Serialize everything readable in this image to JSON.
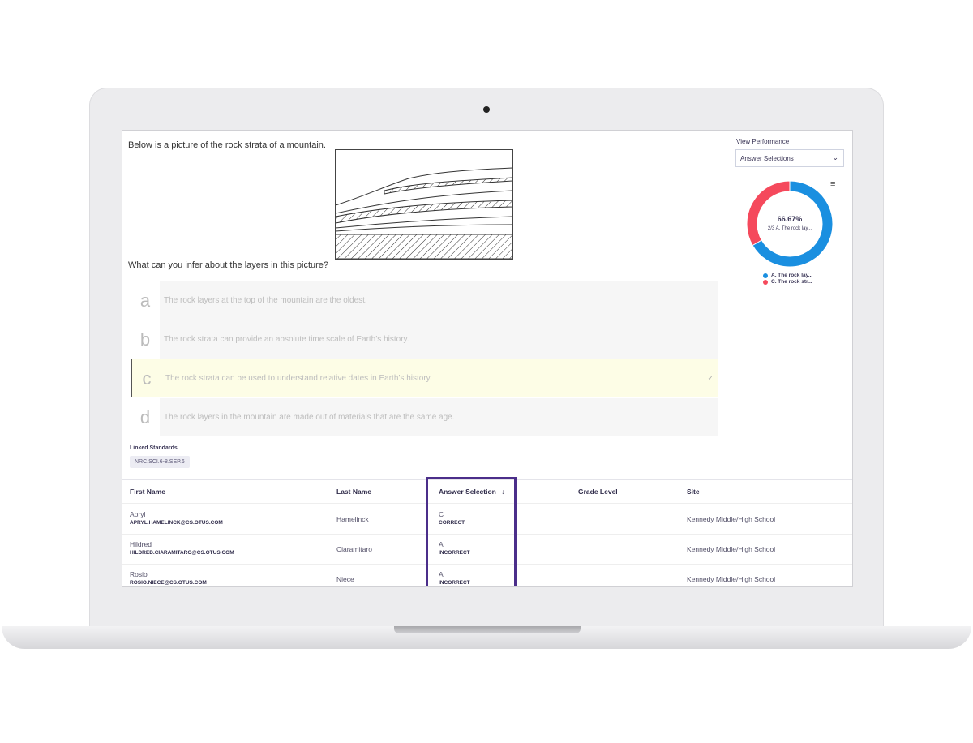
{
  "question": {
    "prompt": "Below is a picture of the rock strata of a mountain.",
    "ask": "What can you infer about the layers in this picture?",
    "options": [
      {
        "letter": "a",
        "text": "The rock layers at the top of the mountain are the oldest.",
        "selected": false
      },
      {
        "letter": "b",
        "text": "The rock strata can provide an absolute time scale of Earth’s history.",
        "selected": false
      },
      {
        "letter": "c",
        "text": "The rock strata can be used to understand relative dates in Earth’s history.",
        "selected": true,
        "icon": "check-icon",
        "check": "✓"
      },
      {
        "letter": "d",
        "text": "The rock layers in the mountain are made out of materials that are the same age.",
        "selected": false
      }
    ],
    "linked_standards_label": "Linked Standards",
    "standards": [
      "NRC.SCI.6-8.SEP.6"
    ]
  },
  "performance": {
    "label": "View Performance",
    "dropdown_value": "Answer Selections",
    "menu_icon": "hamburger-menu-icon",
    "center_value": "66.67%",
    "center_label": "2/3 A. The rock lay..."
  },
  "chart_data": {
    "type": "pie",
    "donut": true,
    "series": [
      {
        "name": "A. The rock lay...",
        "value": 2,
        "percent": 66.67,
        "color": "#1a8fe0"
      },
      {
        "name": "C. The rock str...",
        "value": 1,
        "percent": 33.33,
        "color": "#f5495c"
      }
    ],
    "legend": "bottom"
  },
  "table": {
    "headers": [
      "First Name",
      "Last Name",
      "Answer Selection",
      "Grade Level",
      "Site"
    ],
    "sort_icon": "arrow-down-icon",
    "rows": [
      {
        "first": "Apryl",
        "email": "APRYL.HAMELINCK@CS.OTUS.COM",
        "last": "Hamelinck",
        "answer": "C",
        "result": "CORRECT",
        "grade": "",
        "site": "Kennedy Middle/High School"
      },
      {
        "first": "Hildred",
        "email": "HILDRED.CIARAMITARO@CS.OTUS.COM",
        "last": "Ciaramitaro",
        "answer": "A",
        "result": "INCORRECT",
        "grade": "",
        "site": "Kennedy Middle/High School"
      },
      {
        "first": "Rosio",
        "email": "ROSIO.NIECE@CS.OTUS.COM",
        "last": "Niece",
        "answer": "A",
        "result": "INCORRECT",
        "grade": "",
        "site": "Kennedy Middle/High School"
      }
    ]
  }
}
